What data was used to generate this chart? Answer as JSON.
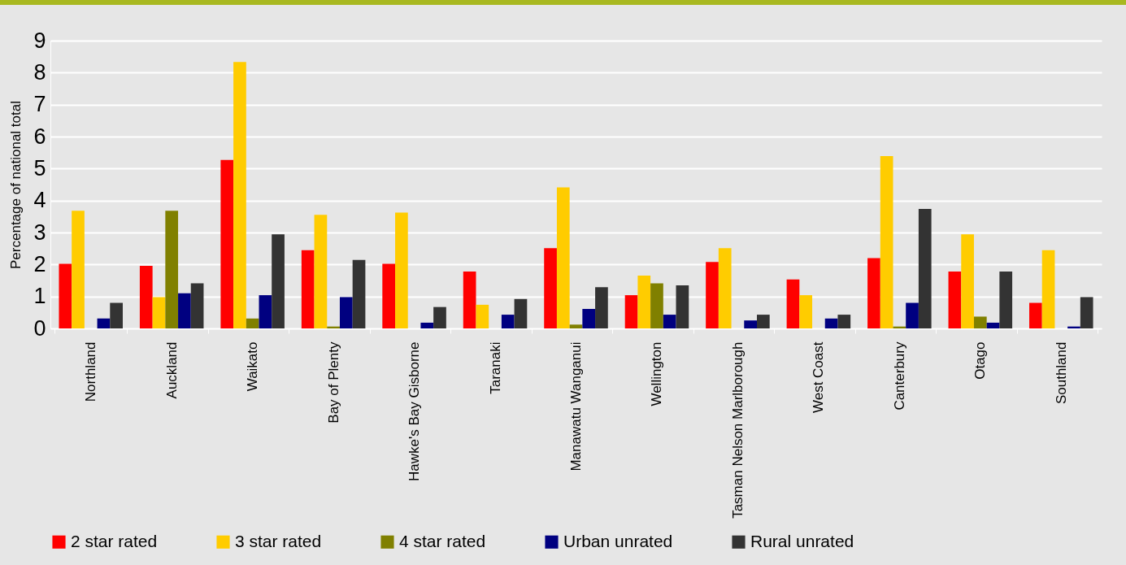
{
  "chart_data": {
    "type": "bar",
    "ylabel": "Percentage of national total",
    "categories": [
      "Northland",
      "Auckland",
      "Waikato",
      "Bay of Plenty",
      "Hawke's Bay Gisborne",
      "Taranaki",
      "Manawatu Wanganui",
      "Wellington",
      "Tasman Nelson Marlborough",
      "West Coast",
      "Canterbury",
      "Otago",
      "Southland"
    ],
    "series": [
      {
        "name": "2 star rated",
        "color": "#ff0000",
        "values": [
          2.02,
          1.96,
          5.27,
          2.45,
          2.02,
          1.78,
          2.51,
          1.04,
          2.08,
          1.53,
          2.2,
          1.78,
          0.8
        ]
      },
      {
        "name": "3 star rated",
        "color": "#ffcc00",
        "values": [
          3.68,
          0.98,
          8.33,
          3.55,
          3.62,
          0.74,
          4.41,
          1.65,
          2.51,
          1.04,
          5.39,
          2.94,
          2.45
        ]
      },
      {
        "name": "4 star rated",
        "color": "#808000",
        "values": [
          null,
          3.68,
          0.31,
          0.06,
          null,
          null,
          0.12,
          1.41,
          null,
          null,
          0.06,
          0.37,
          null
        ]
      },
      {
        "name": "Urban unrated",
        "color": "#000080",
        "values": [
          0.31,
          1.1,
          1.04,
          0.98,
          0.18,
          0.43,
          0.61,
          0.43,
          0.25,
          0.31,
          0.8,
          0.18,
          0.06
        ]
      },
      {
        "name": "Rural unrated",
        "color": "#333333",
        "values": [
          0.8,
          1.41,
          2.94,
          2.14,
          0.67,
          0.92,
          1.29,
          1.35,
          0.43,
          0.43,
          3.74,
          1.78,
          0.98
        ]
      }
    ],
    "ylim": [
      0,
      9
    ],
    "yticks": [
      0,
      1,
      2,
      3,
      4,
      5,
      6,
      7,
      8,
      9
    ],
    "grid": "y",
    "legend": "bottom"
  }
}
